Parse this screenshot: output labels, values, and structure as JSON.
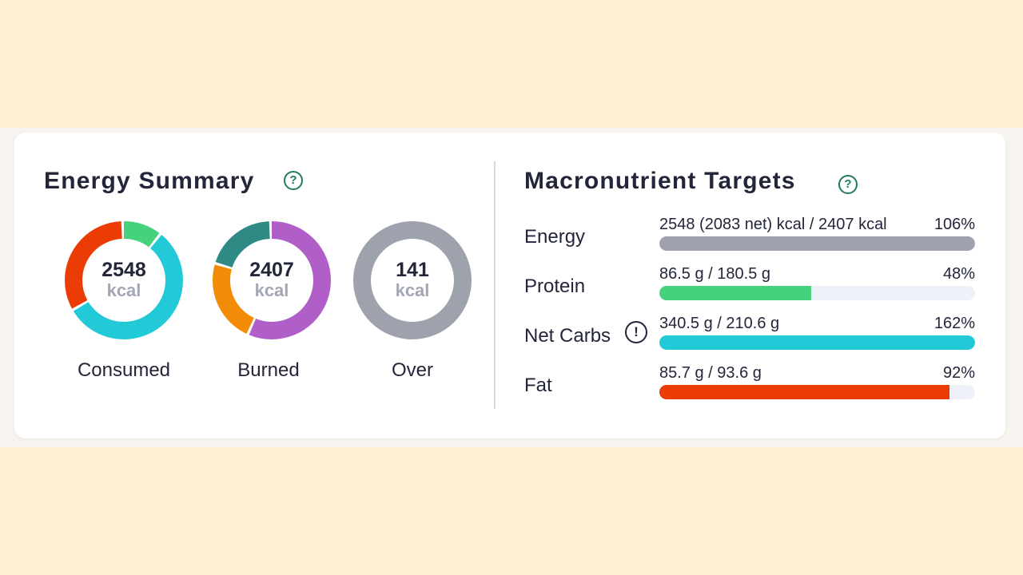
{
  "energy_summary": {
    "title": "Energy Summary",
    "help_icon": "?",
    "donuts": [
      {
        "label": "Consumed",
        "value": "2548",
        "unit": "kcal",
        "segments": [
          {
            "color": "#46d17c",
            "fraction": 0.11
          },
          {
            "color": "#22c9d6",
            "fraction": 0.56
          },
          {
            "color": "#eb3c06",
            "fraction": 0.33
          }
        ]
      },
      {
        "label": "Burned",
        "value": "2407",
        "unit": "kcal",
        "segments": [
          {
            "color": "#b05fc9",
            "fraction": 0.57
          },
          {
            "color": "#f28c06",
            "fraction": 0.23
          },
          {
            "color": "#2f8a86",
            "fraction": 0.2
          }
        ]
      },
      {
        "label": "Over",
        "value": "141",
        "unit": "kcal",
        "segments": [
          {
            "color": "#9ea2ad",
            "fraction": 1.0
          }
        ]
      }
    ]
  },
  "macro_targets": {
    "title": "Macronutrient Targets",
    "help_icon": "?",
    "warning_icon": "!",
    "rows": [
      {
        "label": "Energy",
        "value": "2548 (2083 net) kcal / 2407 kcal",
        "percent": "106%",
        "fill_fraction": 1.0,
        "color": "#9ea2ad"
      },
      {
        "label": "Protein",
        "value": "86.5 g / 180.5 g",
        "percent": "48%",
        "fill_fraction": 0.48,
        "color": "#46d17c"
      },
      {
        "label": "Net Carbs",
        "value": "340.5 g / 210.6 g",
        "percent": "162%",
        "fill_fraction": 1.0,
        "color": "#22c9d6"
      },
      {
        "label": "Fat",
        "value": "85.7 g / 93.6 g",
        "percent": "92%",
        "fill_fraction": 0.92,
        "color": "#eb3c06"
      }
    ]
  }
}
